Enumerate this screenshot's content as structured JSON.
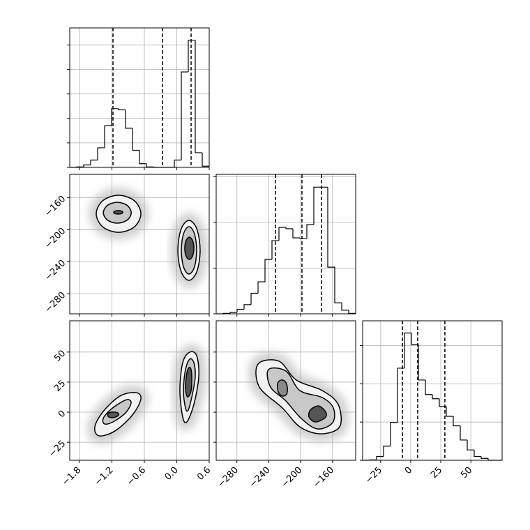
{
  "chart_data": [
    {
      "type": "histogram",
      "bins": [
        -1.98,
        -1.851,
        -1.722,
        -1.593,
        -1.464,
        -1.335,
        -1.206,
        -1.077,
        -0.948,
        -0.819,
        -0.69,
        -0.561,
        -0.432,
        -0.303,
        -0.174,
        -0.045,
        0.084,
        0.213,
        0.342,
        0.471,
        0.6
      ],
      "counts": [
        0,
        0.02,
        0.1,
        0.3,
        0.8,
        1.7,
        2.4,
        2.35,
        1.6,
        0.7,
        0.15,
        0.02,
        0,
        0,
        0,
        0.3,
        3.9,
        5.2,
        0.6,
        0.05
      ],
      "quantiles": [
        -1.18,
        -0.264,
        0.265
      ],
      "xlim": [
        -1.98,
        0.6
      ],
      "ylim": [
        0,
        5.7
      ],
      "xticks": [
        -1.8,
        -1.2,
        -0.6,
        0,
        0.6
      ],
      "yticks": [
        0,
        1,
        2,
        3,
        4,
        5
      ],
      "grid": true,
      "color": "#000000"
    },
    {
      "type": "contour",
      "xlim": [
        -1.98,
        0.6
      ],
      "ylim": [
        -305,
        -131
      ],
      "xticks": [
        -1.8,
        -1.2,
        -0.6,
        0,
        0.6
      ],
      "yticks": [
        {
          "value": -160,
          "label": "−160"
        },
        {
          "value": -200,
          "label": "−200"
        },
        {
          "value": -240,
          "label": "−240"
        },
        {
          "value": -280,
          "label": "−280"
        }
      ],
      "grid": true,
      "contours": [
        {
          "fill": "#f2f2f2",
          "x": [
            -0.664,
            -0.785,
            -1.077,
            -1.369,
            -1.49,
            -1.369,
            -1.077,
            -0.785
          ],
          "y": [
            -180.2,
            -163.9,
            -157.1,
            -163.9,
            -180.2,
            -196.5,
            -203.3,
            -196.5
          ]
        },
        {
          "fill": "#c8c8c8",
          "x": [
            -0.842,
            -0.918,
            -1.1,
            -1.282,
            -1.358,
            -1.282,
            -1.1,
            -0.918
          ],
          "y": [
            -178.9,
            -169.7,
            -165.9,
            -169.7,
            -178.9,
            -188.1,
            -191.9,
            -188.1
          ]
        },
        {
          "fill": "#555555",
          "x": [
            -0.999,
            -1.024,
            -1.083,
            -1.142,
            -1.167,
            -1.142,
            -1.083,
            -1.024
          ],
          "y": [
            -178.4,
            -176.8,
            -176.2,
            -176.8,
            -178.4,
            -180,
            -180.6,
            -180
          ]
        },
        {
          "fill": "#f2f2f2",
          "x": [
            0.432,
            0.372,
            0.226,
            0.08,
            0.02,
            0.08,
            0.226,
            0.372
          ],
          "y": [
            -225.8,
            -199.4,
            -188.4,
            -199.4,
            -225.8,
            -252.2,
            -263.2,
            -252.2
          ]
        },
        {
          "fill": "#c8c8c8",
          "x": [
            0.368,
            0.326,
            0.226,
            0.126,
            0.084,
            0.126,
            0.226,
            0.326
          ],
          "y": [
            -225.8,
            -204.9,
            -196.2,
            -204.9,
            -225.8,
            -246.7,
            -255.4,
            -246.7
          ]
        },
        {
          "fill": "#555555",
          "x": [
            0.316,
            0.291,
            0.232,
            0.173,
            0.148,
            0.173,
            0.232,
            0.291
          ],
          "y": [
            -223.2,
            -213.4,
            -209.3,
            -213.4,
            -223.2,
            -233,
            -237.1,
            -233
          ]
        }
      ]
    },
    {
      "type": "contour",
      "xlim": [
        -1.98,
        0.6
      ],
      "ylim": [
        -40,
        76
      ],
      "xticks": [
        {
          "value": -1.8,
          "label": "−1.8"
        },
        {
          "value": -1.2,
          "label": "−1.2"
        },
        {
          "value": -0.6,
          "label": "−0.6"
        },
        {
          "value": 0,
          "label": "0.0"
        },
        {
          "value": 0.6,
          "label": "0.6"
        }
      ],
      "yticks": [
        50,
        25,
        0,
        {
          "value": -25,
          "label": "−25"
        }
      ],
      "grid": true,
      "contours": [
        {
          "fill": "#f2f2f2",
          "x": [
            -0.664,
            -0.819,
            -1.142,
            -1.438,
            -1.516,
            -1.361,
            -1.051,
            -0.755
          ],
          "y": [
            11,
            -2.3,
            -15.6,
            -19.7,
            -12.2,
            0.6,
            13.4,
            16.3
          ]
        },
        {
          "fill": "#c8c8c8",
          "x": [
            -0.845,
            -0.948,
            -1.18,
            -1.335,
            -1.361,
            -1.232,
            -1.051,
            -0.909
          ],
          "y": [
            7.6,
            -0.6,
            -8.1,
            -9.8,
            -5.2,
            1.8,
            7.6,
            10.5
          ]
        },
        {
          "fill": "#555555",
          "x": [
            -1.077,
            -1.129,
            -1.206,
            -1.271,
            -1.271,
            -1.219,
            -1.142,
            -1.09
          ],
          "y": [
            -2.3,
            -4,
            -4.6,
            -3.5,
            -1.1,
            0,
            0,
            -0.6
          ]
        },
        {
          "fill": "#f2f2f2",
          "x": [
            0.407,
            0.368,
            0.239,
            0.11,
            0.058,
            0.11,
            0.187,
            0.316
          ],
          "y": [
            29.6,
            47,
            49.9,
            41.2,
            18,
            -4,
            -8.1,
            6.4
          ]
        },
        {
          "fill": "#c8c8c8",
          "x": [
            0.342,
            0.316,
            0.239,
            0.161,
            0.123,
            0.161,
            0.213,
            0.29
          ],
          "y": [
            29.6,
            41.2,
            44.1,
            35.4,
            18,
            3.5,
            1.8,
            15.1
          ]
        },
        {
          "fill": "#555555",
          "x": [
            0.278,
            0.265,
            0.226,
            0.187,
            0.161,
            0.187,
            0.226,
            0.265
          ],
          "y": [
            26.7,
            35.4,
            37.1,
            32.5,
            20.9,
            13.4,
            13.4,
            18
          ]
        }
      ]
    },
    {
      "type": "histogram",
      "bins": [
        -306,
        -297.25,
        -288.5,
        -279.75,
        -271,
        -262.25,
        -253.5,
        -244.75,
        -236,
        -227.25,
        -218.5,
        -209.75,
        -201,
        -192.25,
        -183.5,
        -174.75,
        -166,
        -157.25,
        -148.5,
        -139.75,
        -131
      ],
      "counts": [
        0,
        0.01,
        0.03,
        0.1,
        0.2,
        0.45,
        0.7,
        1.19,
        1.6,
        1.89,
        1.86,
        1.66,
        1.65,
        1.95,
        2.77,
        2.77,
        1.02,
        0.24,
        0.08,
        0.01
      ],
      "quantiles": [
        -231.6,
        -198.4,
        -173.9
      ],
      "xlim": [
        -306,
        -131
      ],
      "ylim": [
        0,
        3.05
      ],
      "xticks": [
        -280,
        -240,
        -200,
        -160
      ],
      "yticks": [
        0,
        1,
        2,
        3
      ],
      "grid": true,
      "color": "#000000"
    },
    {
      "type": "contour",
      "xlim": [
        -306,
        -131
      ],
      "ylim": [
        -40,
        76
      ],
      "xticks": [
        {
          "value": -280,
          "label": "−280"
        },
        {
          "value": -240,
          "label": "−240"
        },
        {
          "value": -200,
          "label": "−200"
        },
        {
          "value": -160,
          "label": "−160"
        }
      ],
      "yticks": [
        50,
        25,
        0,
        -25
      ],
      "grid": true,
      "contours": [
        {
          "fill": "#f2f2f2",
          "x": [
            -253.5,
            -227.3,
            -205.4,
            -173,
            -152.9,
            -151.1,
            -174.8,
            -201,
            -222.9,
            -251.8
          ],
          "y": [
            40,
            42.4,
            26.7,
            18,
            6.4,
            -12.2,
            -18,
            -12.2,
            3.5,
            20.9
          ]
        },
        {
          "fill": "#c8c8c8",
          "x": [
            -240.4,
            -218.5,
            -201,
            -173,
            -159,
            -159.9,
            -179.1,
            -199.3,
            -218.5,
            -237.8
          ],
          "y": [
            35.4,
            34.2,
            18,
            12.2,
            3.5,
            -8.7,
            -13.9,
            -5.2,
            9.3,
            20.9
          ]
        },
        {
          "fill": "#8a8a8a",
          "x": [
            -216.8,
            -219.4,
            -224.6,
            -229,
            -228.1,
            -222.9,
            -217.6
          ],
          "y": [
            20.9,
            25.5,
            26.7,
            23.8,
            16.8,
            13.4,
            15.1
          ]
        },
        {
          "fill": "#555555",
          "x": [
            -167.8,
            -173,
            -179.1,
            -187.9,
            -189.6,
            -181.8,
            -170.4
          ],
          "y": [
            -1.1,
            3.5,
            5.2,
            1.8,
            -4,
            -8.1,
            -5.2
          ]
        }
      ]
    },
    {
      "type": "histogram",
      "bins": [
        -40,
        -34.2,
        -28.4,
        -22.6,
        -16.8,
        -11,
        -5.2,
        0.6,
        6.4,
        12.2,
        18,
        23.8,
        29.6,
        35.4,
        41.2,
        47,
        52.8,
        58.6,
        64.4,
        70.2,
        76
      ],
      "counts": [
        0,
        0.01,
        0.1,
        0.37,
        0.99,
        2.41,
        3.33,
        3.03,
        2.1,
        1.72,
        1.61,
        1.41,
        1.15,
        0.9,
        0.53,
        0.27,
        0.1,
        0.05,
        0,
        0
      ],
      "quantiles": [
        -6.9,
        5.8,
        28.4
      ],
      "xlim": [
        -40,
        76
      ],
      "ylim": [
        0,
        3.65
      ],
      "xticks": [
        {
          "value": -25,
          "label": "−25"
        },
        0,
        25,
        50
      ],
      "yticks": [
        0,
        1,
        2,
        3
      ],
      "grid": true,
      "color": "#000000"
    }
  ]
}
